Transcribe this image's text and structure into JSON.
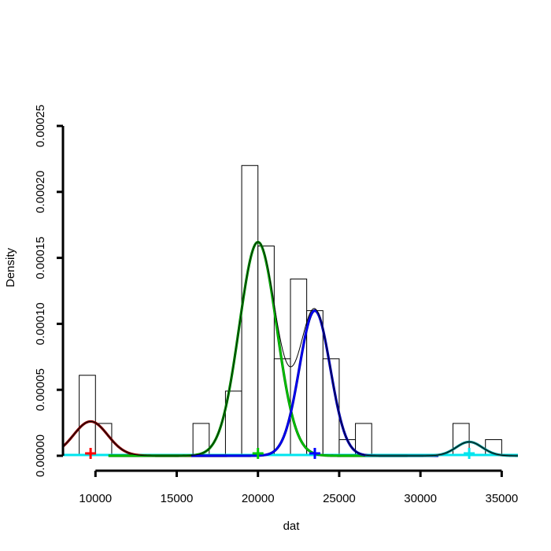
{
  "chart_data": {
    "type": "bar",
    "title": "",
    "xlabel": "dat",
    "ylabel": "Density",
    "xlim": [
      8000,
      36000
    ],
    "ylim": [
      0,
      0.00025
    ],
    "x_ticks": [
      10000,
      15000,
      20000,
      25000,
      30000,
      35000
    ],
    "x_tick_labels": [
      "10000",
      "15000",
      "20000",
      "25000",
      "30000",
      "35000"
    ],
    "y_ticks": [
      0,
      5e-05,
      0.0001,
      0.00015,
      0.0002,
      0.00025
    ],
    "y_tick_labels": [
      "0.00000",
      "0.00005",
      "0.00010",
      "0.00015",
      "0.00020",
      "0.00025"
    ],
    "histogram": {
      "bin_width": 1000,
      "bins": [
        {
          "x0": 9000,
          "x1": 10000,
          "density": 6.1e-05
        },
        {
          "x0": 10000,
          "x1": 11000,
          "density": 2.45e-05
        },
        {
          "x0": 16000,
          "x1": 17000,
          "density": 2.45e-05
        },
        {
          "x0": 18000,
          "x1": 19000,
          "density": 4.9e-05
        },
        {
          "x0": 19000,
          "x1": 20000,
          "density": 0.00022
        },
        {
          "x0": 20000,
          "x1": 21000,
          "density": 0.000159
        },
        {
          "x0": 21000,
          "x1": 22000,
          "density": 7.35e-05
        },
        {
          "x0": 22000,
          "x1": 23000,
          "density": 0.000134
        },
        {
          "x0": 23000,
          "x1": 24000,
          "density": 0.00011
        },
        {
          "x0": 24000,
          "x1": 25000,
          "density": 7.35e-05
        },
        {
          "x0": 25000,
          "x1": 26000,
          "density": 1.22e-05
        },
        {
          "x0": 26000,
          "x1": 27000,
          "density": 2.45e-05
        },
        {
          "x0": 32000,
          "x1": 33000,
          "density": 2.45e-05
        },
        {
          "x0": 34000,
          "x1": 35000,
          "density": 1.22e-05
        }
      ]
    },
    "components": [
      {
        "mean": 9700,
        "sd": 1050,
        "peak": 2.6e-05,
        "colors": [
          "#8b0000"
        ],
        "marker_color": "#ff0000"
      },
      {
        "mean": 20000,
        "sd": 1150,
        "peak": 0.000162,
        "colors": [
          "#006400",
          "#00cc00"
        ],
        "marker_color": "#00cc00"
      },
      {
        "mean": 23500,
        "sd": 950,
        "peak": 0.00011,
        "colors": [
          "#00008b",
          "#0000ff"
        ],
        "marker_color": "#0000ff"
      },
      {
        "mean": 33000,
        "sd": 800,
        "peak": 1.05e-05,
        "colors": [
          "#008b8b"
        ],
        "marker_color": "#00e5ee"
      }
    ],
    "mixture_color": "#000000",
    "baseline_color": "#00e5ee"
  }
}
